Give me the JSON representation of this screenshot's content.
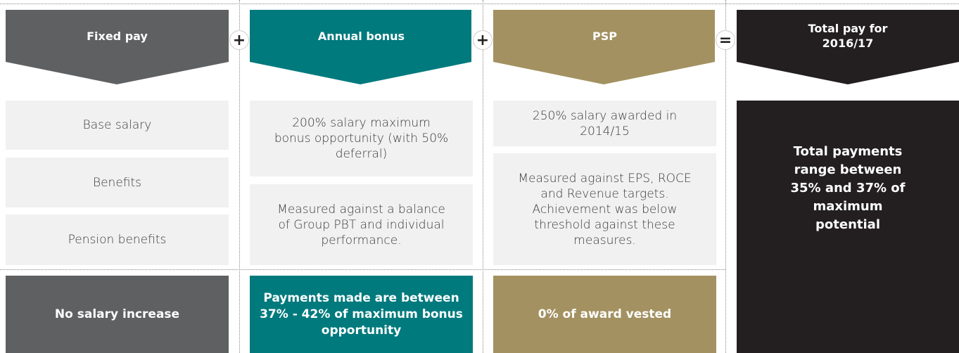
{
  "columns": [
    {
      "header": "Fixed pay",
      "items": [
        "Base salary",
        "Benefits",
        "Pension benefits"
      ],
      "result": "No salary increase"
    },
    {
      "header": "Annual bonus",
      "items": [
        "200% salary maximum bonus opportunity (with 50% deferral)",
        "Measured against a balance of Group PBT and individual performance."
      ],
      "result": "Payments made are between 37% - 42% of maximum bonus opportunity"
    },
    {
      "header": "PSP",
      "items": [
        "250% salary awarded in 2014/15",
        "Measured against EPS, ROCE and Revenue targets. Achievement was below threshold against these measures."
      ],
      "result": "0% of award vested"
    }
  ],
  "operators": [
    "+",
    "+",
    "="
  ],
  "total": {
    "header": "Total pay for 2016/17",
    "text": "Total payments range between 35% and 37% of maximum potential"
  }
}
